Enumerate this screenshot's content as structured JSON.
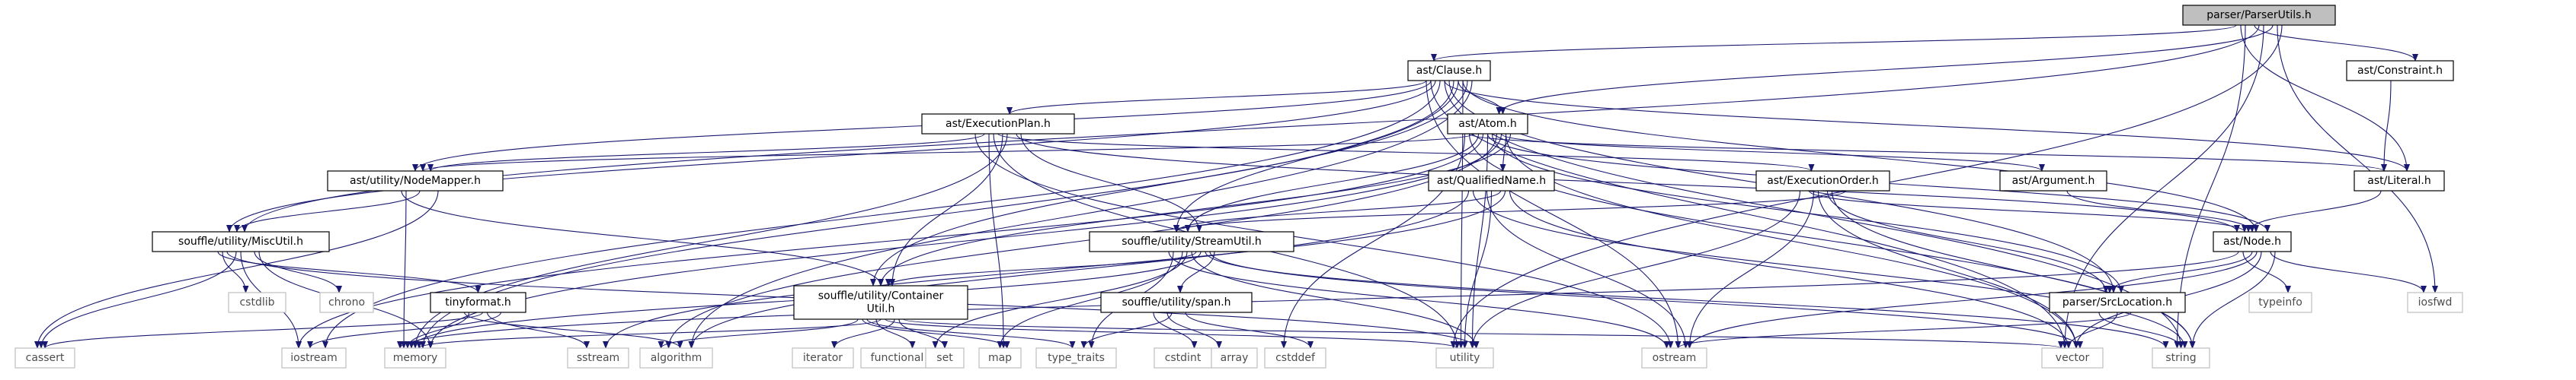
{
  "colors": {
    "edge": "#191970",
    "root_fill": "#bfbfbf",
    "root_border": "#000000",
    "doc_border": "#000000",
    "sys_border": "#bfbfbf",
    "text_doc": "#000000",
    "text_sys": "#4d4d4d"
  },
  "nodes": [
    {
      "id": "parser_utils",
      "label": "parser/ParserUtils.h",
      "kind": "root"
    },
    {
      "id": "ast_clause",
      "label": "ast/Clause.h",
      "kind": "doc"
    },
    {
      "id": "ast_constraint",
      "label": "ast/Constraint.h",
      "kind": "doc"
    },
    {
      "id": "ast_execplan",
      "label": "ast/ExecutionPlan.h",
      "kind": "doc"
    },
    {
      "id": "ast_atom",
      "label": "ast/Atom.h",
      "kind": "doc"
    },
    {
      "id": "ast_nodemapper",
      "label": "ast/utility/NodeMapper.h",
      "kind": "doc"
    },
    {
      "id": "ast_qualname",
      "label": "ast/QualifiedName.h",
      "kind": "doc"
    },
    {
      "id": "ast_execorder",
      "label": "ast/ExecutionOrder.h",
      "kind": "doc"
    },
    {
      "id": "ast_argument",
      "label": "ast/Argument.h",
      "kind": "doc"
    },
    {
      "id": "ast_literal",
      "label": "ast/Literal.h",
      "kind": "doc"
    },
    {
      "id": "misc_util",
      "label": "souffle/utility/MiscUtil.h",
      "kind": "doc"
    },
    {
      "id": "stream_util",
      "label": "souffle/utility/StreamUtil.h",
      "kind": "doc"
    },
    {
      "id": "ast_node",
      "label": "ast/Node.h",
      "kind": "doc"
    },
    {
      "id": "tinyformat",
      "label": "tinyformat.h",
      "kind": "doc"
    },
    {
      "id": "container_util",
      "label": "souffle/utility/Container\nUtil.h",
      "kind": "doc"
    },
    {
      "id": "span",
      "label": "souffle/utility/span.h",
      "kind": "doc"
    },
    {
      "id": "srclocation",
      "label": "parser/SrcLocation.h",
      "kind": "doc"
    },
    {
      "id": "cstdlib",
      "label": "cstdlib",
      "kind": "sys"
    },
    {
      "id": "chrono",
      "label": "chrono",
      "kind": "sys"
    },
    {
      "id": "typeinfo",
      "label": "typeinfo",
      "kind": "sys"
    },
    {
      "id": "iosfwd",
      "label": "iosfwd",
      "kind": "sys"
    },
    {
      "id": "cassert",
      "label": "cassert",
      "kind": "sys"
    },
    {
      "id": "iostream",
      "label": "iostream",
      "kind": "sys"
    },
    {
      "id": "memory",
      "label": "memory",
      "kind": "sys"
    },
    {
      "id": "sstream",
      "label": "sstream",
      "kind": "sys"
    },
    {
      "id": "algorithm",
      "label": "algorithm",
      "kind": "sys"
    },
    {
      "id": "iterator",
      "label": "iterator",
      "kind": "sys"
    },
    {
      "id": "functional",
      "label": "functional",
      "kind": "sys"
    },
    {
      "id": "set",
      "label": "set",
      "kind": "sys"
    },
    {
      "id": "map",
      "label": "map",
      "kind": "sys"
    },
    {
      "id": "type_traits",
      "label": "type_traits",
      "kind": "sys"
    },
    {
      "id": "cstdint",
      "label": "cstdint",
      "kind": "sys"
    },
    {
      "id": "array",
      "label": "array",
      "kind": "sys"
    },
    {
      "id": "cstddef",
      "label": "cstddef",
      "kind": "sys"
    },
    {
      "id": "utility",
      "label": "utility",
      "kind": "sys"
    },
    {
      "id": "ostream",
      "label": "ostream",
      "kind": "sys"
    },
    {
      "id": "vector",
      "label": "vector",
      "kind": "sys"
    },
    {
      "id": "string",
      "label": "string",
      "kind": "sys"
    }
  ],
  "edges": [
    [
      "parser_utils",
      "ast_clause"
    ],
    [
      "parser_utils",
      "ast_constraint"
    ],
    [
      "parser_utils",
      "ast_atom"
    ],
    [
      "parser_utils",
      "ast_literal"
    ],
    [
      "parser_utils",
      "misc_util"
    ],
    [
      "parser_utils",
      "iosfwd"
    ],
    [
      "parser_utils",
      "string"
    ],
    [
      "parser_utils",
      "vector"
    ],
    [
      "parser_utils",
      "utility"
    ],
    [
      "ast_constraint",
      "ast_literal"
    ],
    [
      "ast_clause",
      "ast_atom"
    ],
    [
      "ast_clause",
      "ast_execplan"
    ],
    [
      "ast_clause",
      "ast_literal"
    ],
    [
      "ast_clause",
      "ast_node"
    ],
    [
      "ast_clause",
      "ast_nodemapper"
    ],
    [
      "ast_clause",
      "srclocation"
    ],
    [
      "ast_clause",
      "container_util"
    ],
    [
      "ast_clause",
      "misc_util"
    ],
    [
      "ast_clause",
      "stream_util"
    ],
    [
      "ast_clause",
      "algorithm"
    ],
    [
      "ast_clause",
      "iostream"
    ],
    [
      "ast_clause",
      "memory"
    ],
    [
      "ast_clause",
      "ostream"
    ],
    [
      "ast_clause",
      "string"
    ],
    [
      "ast_clause",
      "utility"
    ],
    [
      "ast_clause",
      "vector"
    ],
    [
      "ast_execplan",
      "ast_execorder"
    ],
    [
      "ast_execplan",
      "ast_node"
    ],
    [
      "ast_execplan",
      "ast_nodemapper"
    ],
    [
      "ast_execplan",
      "container_util"
    ],
    [
      "ast_execplan",
      "stream_util"
    ],
    [
      "ast_execplan",
      "map"
    ],
    [
      "ast_execplan",
      "memory"
    ],
    [
      "ast_execplan",
      "ostream"
    ],
    [
      "ast_execplan",
      "utility"
    ],
    [
      "ast_atom",
      "ast_argument"
    ],
    [
      "ast_atom",
      "ast_literal"
    ],
    [
      "ast_atom",
      "ast_node"
    ],
    [
      "ast_atom",
      "ast_qualname"
    ],
    [
      "ast_atom",
      "ast_nodemapper"
    ],
    [
      "ast_atom",
      "srclocation"
    ],
    [
      "ast_atom",
      "container_util"
    ],
    [
      "ast_atom",
      "stream_util"
    ],
    [
      "ast_atom",
      "algorithm"
    ],
    [
      "ast_atom",
      "cstddef"
    ],
    [
      "ast_atom",
      "iostream"
    ],
    [
      "ast_atom",
      "memory"
    ],
    [
      "ast_atom",
      "string"
    ],
    [
      "ast_atom",
      "utility"
    ],
    [
      "ast_atom",
      "vector"
    ],
    [
      "ast_nodemapper",
      "container_util"
    ],
    [
      "ast_nodemapper",
      "misc_util"
    ],
    [
      "ast_nodemapper",
      "cassert"
    ],
    [
      "ast_nodemapper",
      "memory"
    ],
    [
      "ast_qualname",
      "stream_util"
    ],
    [
      "ast_qualname",
      "algorithm"
    ],
    [
      "ast_qualname",
      "ostream"
    ],
    [
      "ast_qualname",
      "sstream"
    ],
    [
      "ast_qualname",
      "string"
    ],
    [
      "ast_qualname",
      "utility"
    ],
    [
      "ast_qualname",
      "vector"
    ],
    [
      "ast_execorder",
      "ast_node"
    ],
    [
      "ast_execorder",
      "srclocation"
    ],
    [
      "ast_execorder",
      "stream_util"
    ],
    [
      "ast_execorder",
      "ostream"
    ],
    [
      "ast_execorder",
      "string"
    ],
    [
      "ast_execorder",
      "utility"
    ],
    [
      "ast_execorder",
      "vector"
    ],
    [
      "ast_argument",
      "ast_node"
    ],
    [
      "ast_literal",
      "ast_node"
    ],
    [
      "ast_node",
      "srclocation"
    ],
    [
      "ast_node",
      "iosfwd"
    ],
    [
      "ast_node",
      "memory"
    ],
    [
      "ast_node",
      "ostream"
    ],
    [
      "ast_node",
      "string"
    ],
    [
      "ast_node",
      "typeinfo"
    ],
    [
      "ast_node",
      "vector"
    ],
    [
      "misc_util",
      "tinyformat"
    ],
    [
      "misc_util",
      "cassert"
    ],
    [
      "misc_util",
      "chrono"
    ],
    [
      "misc_util",
      "cstdlib"
    ],
    [
      "misc_util",
      "iostream"
    ],
    [
      "misc_util",
      "memory"
    ],
    [
      "misc_util",
      "utility"
    ],
    [
      "stream_util",
      "container_util"
    ],
    [
      "stream_util",
      "span"
    ],
    [
      "stream_util",
      "map"
    ],
    [
      "stream_util",
      "memory"
    ],
    [
      "stream_util",
      "ostream"
    ],
    [
      "stream_util",
      "set"
    ],
    [
      "stream_util",
      "string"
    ],
    [
      "stream_util",
      "type_traits"
    ],
    [
      "stream_util",
      "utility"
    ],
    [
      "stream_util",
      "vector"
    ],
    [
      "tinyformat",
      "algorithm"
    ],
    [
      "tinyformat",
      "cassert"
    ],
    [
      "tinyformat",
      "iostream"
    ],
    [
      "tinyformat",
      "memory"
    ],
    [
      "tinyformat",
      "sstream"
    ],
    [
      "container_util",
      "algorithm"
    ],
    [
      "container_util",
      "functional"
    ],
    [
      "container_util",
      "iterator"
    ],
    [
      "container_util",
      "map"
    ],
    [
      "container_util",
      "memory"
    ],
    [
      "container_util",
      "set"
    ],
    [
      "container_util",
      "type_traits"
    ],
    [
      "container_util",
      "utility"
    ],
    [
      "container_util",
      "vector"
    ],
    [
      "span",
      "array"
    ],
    [
      "span",
      "cstddef"
    ],
    [
      "span",
      "cstdint"
    ],
    [
      "span",
      "type_traits"
    ],
    [
      "srclocation",
      "ostream"
    ],
    [
      "srclocation",
      "string"
    ],
    [
      "srclocation",
      "vector"
    ]
  ]
}
